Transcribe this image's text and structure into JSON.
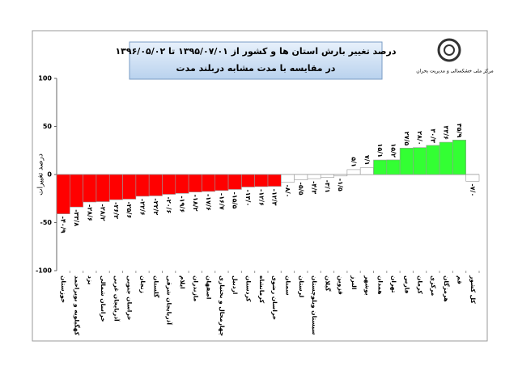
{
  "chart_data": {
    "type": "bar",
    "title": "درصد تغییر بارش استان ها و کشور از ۱۳۹۵/۰۷/۰۱ تا ۱۳۹۶/۰۵/۰۲",
    "subtitle": "در مقایسه با مدت مشابه دربلند مدت",
    "y_label": "درصد تغییرات",
    "logo_text": "مرکز ملی خشکسالی و مدیریت بحران",
    "categories": [
      "خوزستان",
      "کهگیلویه و بویراحمد",
      "یزد",
      "خراسان شمالی",
      "آذربایجان غربی",
      "خراسان جنوبی",
      "زنجان",
      "گلستان",
      "آذربایجان شرقی",
      "ایلام",
      "مازندران",
      "اصفهان",
      "چهارمحال و بختیاری",
      "اردبیل",
      "کردستان",
      "کرمانشاه",
      "خراسان رضوی",
      "سمنان",
      "لرستان",
      "سیستان وبلوچستان",
      "گیلان",
      "قزوین",
      "البرز",
      "بوشهر",
      "همدان",
      "تهران",
      "فارس",
      "کرمان",
      "مرکزی",
      "هرمزگان",
      "قم",
      "کل کشور"
    ],
    "values": [
      -40.9,
      -33.8,
      -28.6,
      -28.2,
      -26.2,
      -25.6,
      -22.6,
      -22.2,
      -20.6,
      -19.6,
      -18.2,
      -17.6,
      -16.7,
      -15.5,
      -13.0,
      -12.6,
      -12.3,
      -8.0,
      -5.5,
      -4.3,
      -3.1,
      -1.5,
      5.1,
      7.1,
      15.1,
      15.2,
      27.5,
      28.0,
      30.3,
      33.6,
      35.9,
      -7.0
    ],
    "value_labels": [
      "-۴۰/۹",
      "-۳۳/۸",
      "-۲۸/۶",
      "-۲۸/۲",
      "-۲۶/۲",
      "-۲۵/۶",
      "-۲۲/۶",
      "-۲۲/۲",
      "-۲۰/۶",
      "-۱۹/۶",
      "-۱۸/۲",
      "-۱۷/۶",
      "-۱۶/۷",
      "-۱۵/۵",
      "-۱۳/۰",
      "-۱۲/۶",
      "-۱۲/۳",
      "-۸/۰",
      "-۵/۵",
      "-۴/۳",
      "-۳/۱",
      "-۱/۵",
      "۵/۱",
      "۷/۱",
      "۱۵/۱",
      "۱۵/۲",
      "۲۷/۵",
      "۲۸/۰",
      "۳۰/۳",
      "۳۳/۶",
      "۳۵/۹",
      "-۷/۰"
    ],
    "colors": [
      "#ff0000",
      "#ff0000",
      "#ff0000",
      "#ff0000",
      "#ff0000",
      "#ff0000",
      "#ff0000",
      "#ff0000",
      "#ff0000",
      "#ff0000",
      "#ff0000",
      "#ff0000",
      "#ff0000",
      "#ff0000",
      "#ff0000",
      "#ff0000",
      "#ff0000",
      "#ffffff",
      "#ffffff",
      "#ffffff",
      "#ffffff",
      "#ffffff",
      "#ffffff",
      "#ffffff",
      "#33ff33",
      "#33ff33",
      "#33ff33",
      "#33ff33",
      "#33ff33",
      "#33ff33",
      "#33ff33",
      "#ffffff"
    ],
    "ylim": [
      -100,
      100
    ],
    "yticks": [
      -100,
      -50,
      0,
      50,
      100
    ]
  }
}
